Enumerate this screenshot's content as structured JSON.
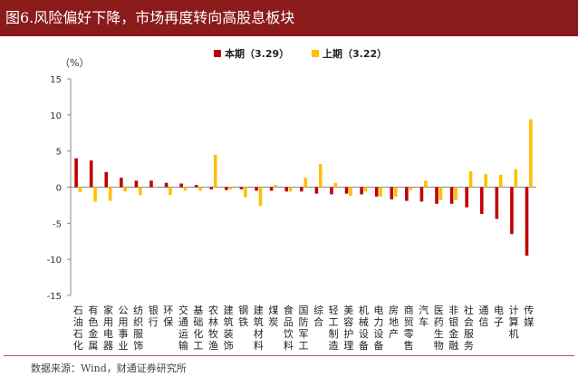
{
  "header": {
    "title": "图6.风险偏好下降，市场再度转向高股息板块"
  },
  "source": "数据来源：Wind，财通证券研究所",
  "colors": {
    "header_bg": "#8b1a1a",
    "series1": "#c00000",
    "series2": "#ffc000",
    "axis": "#888888"
  },
  "chart_data": {
    "type": "bar",
    "title": "",
    "ylabel": "（%）",
    "xlabel": "",
    "ylim": [
      -15,
      15
    ],
    "yticks": [
      -15,
      -10,
      -5,
      0,
      5,
      10,
      15
    ],
    "legend_position": "top",
    "categories": [
      "石油石化",
      "有色金属",
      "家用电器",
      "公用事业",
      "纺织服饰",
      "银行",
      "环保",
      "交通运输",
      "基础化工",
      "农林牧渔",
      "建筑装饰",
      "钢铁",
      "建筑材料",
      "煤炭",
      "食品饮料",
      "国防军工",
      "综合",
      "轻工制造",
      "美容护理",
      "机械设备",
      "电力设备",
      "房地产",
      "商贸零售",
      "汽车",
      "医药生物",
      "非银金融",
      "社会服务",
      "通信",
      "电子",
      "计算机",
      "传媒"
    ],
    "series": [
      {
        "name": "本期（3.29）",
        "color": "#c00000",
        "values": [
          4.0,
          3.7,
          2.1,
          1.3,
          0.9,
          0.9,
          0.6,
          0.5,
          0.3,
          -0.3,
          -0.4,
          -0.3,
          -0.5,
          -0.5,
          -0.6,
          -0.6,
          -0.9,
          -1.0,
          -0.9,
          -1.0,
          -1.3,
          -1.7,
          -1.9,
          -2.0,
          -2.3,
          -2.3,
          -2.8,
          -3.7,
          -4.4,
          -6.5,
          -9.5
        ]
      },
      {
        "name": "上期（3.22）",
        "color": "#ffc000",
        "values": [
          -0.7,
          -2.0,
          -1.9,
          -0.6,
          -1.1,
          0.0,
          -1.1,
          -0.5,
          -0.5,
          4.5,
          -0.3,
          -1.4,
          -2.6,
          0.3,
          -0.6,
          1.3,
          3.2,
          0.6,
          -1.2,
          -0.6,
          -1.3,
          -1.3,
          -0.4,
          0.9,
          -1.8,
          -1.8,
          2.2,
          1.8,
          1.7,
          2.5,
          9.4
        ]
      }
    ]
  }
}
